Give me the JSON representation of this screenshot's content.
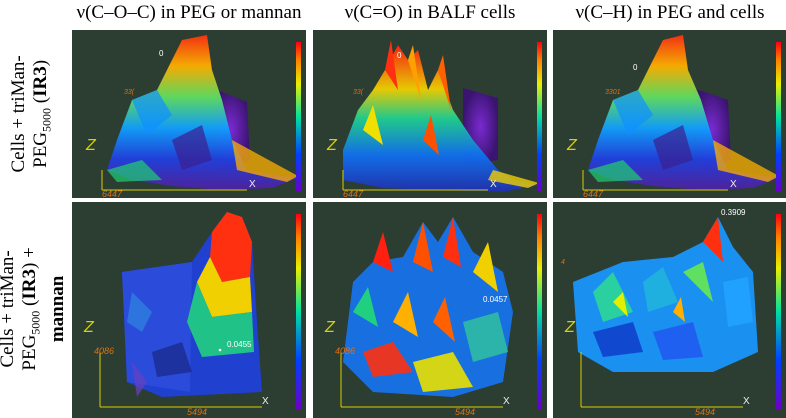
{
  "column_titles": [
    "ν(C–O–C) in PEG or mannan",
    "ν(C=O) in BALF cells",
    "ν(C–H) in PEG and cells"
  ],
  "row_labels": [
    {
      "line1": "Cells + triMan-",
      "line2_pre": "PEG",
      "line2_sub": "5000",
      "line2_post": " (",
      "bold": "IR3",
      "line2_end": ")"
    },
    {
      "line1": "Cells + triMan-",
      "line2_pre": "PEG",
      "line2_sub": "5000",
      "line2_post": " (",
      "bold": "IR3",
      "line2_end": ") +",
      "line3": "mannan"
    }
  ],
  "panels": [
    {
      "z": "Z",
      "x": "X",
      "x_value": "6447",
      "peak_label": "0",
      "side_label": "33(",
      "annot": ""
    },
    {
      "z": "Z",
      "x": "X",
      "x_value": "6447",
      "peak_label": "0",
      "side_label": "33(",
      "annot": ""
    },
    {
      "z": "Z",
      "x": "X",
      "x_value": "6447",
      "peak_label": "0",
      "side_label": "3301",
      "annot": ""
    },
    {
      "z": "Z",
      "x": "X",
      "x_value": "5494",
      "y_value": "4086",
      "peak_label": "",
      "side_label": "",
      "annot": "0.0455"
    },
    {
      "z": "Z",
      "x": "X",
      "x_value": "5494",
      "y_value": "4086",
      "peak_label": "",
      "side_label": "",
      "annot": "0.0457"
    },
    {
      "z": "Z",
      "x": "X",
      "x_value": "5494",
      "y_value": "",
      "peak_label": "",
      "side_label": "4",
      "annot": "0.3909"
    }
  ],
  "colors": {
    "bg_dark": "#2a3a30",
    "axis": "#d8d000",
    "label_orange": "#e07010"
  }
}
